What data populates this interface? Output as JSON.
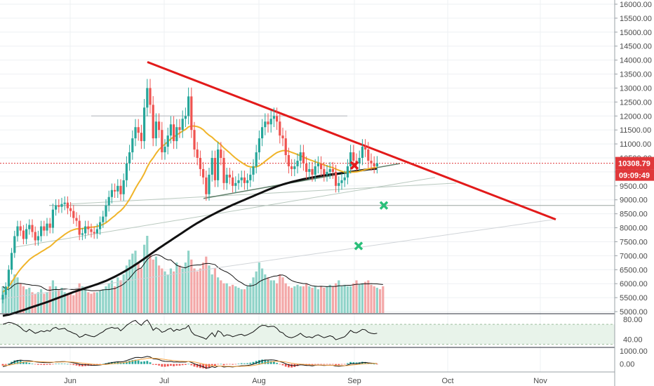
{
  "chart_data": {
    "type": "candlestick",
    "price_axis": {
      "ticks": [
        "16000.00",
        "15500.00",
        "15000.00",
        "14500.00",
        "14000.00",
        "13500.00",
        "13000.00",
        "12500.00",
        "12000.00",
        "11500.00",
        "11000.00",
        "10500.00",
        "10000.00",
        "9500.00",
        "9000.00",
        "8500.00",
        "8000.00",
        "7500.00",
        "7000.00",
        "6500.00",
        "6000.00",
        "5500.00",
        "5000.00"
      ],
      "tick_values": [
        16000,
        15500,
        15000,
        14500,
        14000,
        13500,
        13000,
        12500,
        12000,
        11500,
        11000,
        10500,
        10000,
        9500,
        9000,
        8500,
        8000,
        7500,
        7000,
        6500,
        6000,
        5500,
        5000
      ],
      "last_price": "10308.79",
      "last_price_value": 10308.79,
      "countdown": "09:09:49",
      "ylim": [
        4950,
        16150
      ]
    },
    "time_axis": {
      "labels": [
        "Jun",
        "Jul",
        "Aug",
        "Sep",
        "Oct",
        "Nov"
      ]
    },
    "closes": [
      5600,
      5900,
      6500,
      7100,
      7700,
      8050,
      7900,
      7600,
      7950,
      8100,
      7850,
      7550,
      7700,
      8050,
      7900,
      8150,
      8000,
      8650,
      8800,
      8750,
      8850,
      8900,
      8700,
      8600,
      8350,
      8250,
      7750,
      7800,
      8050,
      7950,
      7850,
      7800,
      7950,
      8200,
      8400,
      8800,
      9100,
      9350,
      9300,
      9500,
      9200,
      9700,
      10300,
      10700,
      11200,
      11600,
      11400,
      11100,
      12300,
      13000,
      12400,
      11200,
      11800,
      11500,
      10700,
      10900,
      11300,
      11700,
      11100,
      11600,
      11500,
      11900,
      12000,
      12700,
      11500,
      10800,
      10500,
      10100,
      9800,
      9200,
      9900,
      10500,
      9700,
      10800,
      10500,
      9600,
      9900,
      9800,
      9500,
      9600,
      9700,
      9800,
      9600,
      9700,
      9900,
      10200,
      10700,
      11200,
      11600,
      11800,
      11700,
      11900,
      12000,
      11800,
      11300,
      11200,
      10600,
      10200,
      10100,
      10200,
      10400,
      10700,
      10300,
      10000,
      10100,
      9900,
      10200,
      10300,
      10100,
      9900,
      10000,
      10100,
      10000,
      9500,
      9600,
      9700,
      9800,
      10200,
      10700,
      10400,
      10300,
      10500,
      10900,
      10800,
      10400,
      10300,
      10200,
      10308
    ],
    "volume": [
      900,
      700,
      800,
      1100,
      1300,
      1200,
      1000,
      900,
      800,
      850,
      700,
      650,
      700,
      800,
      650,
      700,
      900,
      1100,
      900,
      800,
      850,
      700,
      650,
      700,
      600,
      800,
      1000,
      900,
      800,
      700,
      650,
      700,
      700,
      750,
      800,
      900,
      1000,
      1100,
      900,
      1200,
      1100,
      1300,
      1600,
      1800,
      2000,
      2100,
      1700,
      1500,
      2300,
      2600,
      2000,
      1800,
      1900,
      1600,
      1500,
      1400,
      1300,
      1500,
      1400,
      1700,
      1600,
      1500,
      1700,
      2100,
      1800,
      1500,
      1400,
      1500,
      1700,
      1900,
      1600,
      1300,
      1500,
      1200,
      1100,
      1000,
      1000,
      900,
      950,
      900,
      850,
      800,
      800,
      900,
      1000,
      1200,
      1400,
      1700,
      1500,
      1300,
      1200,
      1100,
      1100,
      1000,
      1300,
      1200,
      1000,
      900,
      850,
      900,
      950,
      900,
      900,
      1000,
      900,
      850,
      900,
      800,
      900,
      850,
      900,
      950,
      900,
      1000,
      1100,
      900,
      950,
      900,
      900,
      1000,
      1100,
      950,
      1000,
      1050,
      1100,
      950,
      900,
      850,
      800,
      900
    ],
    "sma_short": [
      5700,
      5780,
      5900,
      6050,
      6220,
      6380,
      6520,
      6640,
      6750,
      6860,
      6940,
      7010,
      7070,
      7140,
      7200,
      7270,
      7330,
      7420,
      7520,
      7600,
      7680,
      7760,
      7830,
      7890,
      7930,
      7960,
      7960,
      7970,
      7990,
      8010,
      8020,
      8030,
      8050,
      8080,
      8120,
      8180,
      8260,
      8350,
      8430,
      8530,
      8610,
      8720,
      8860,
      9020,
      9210,
      9410,
      9590,
      9750,
      9940,
      10170,
      10360,
      10500,
      10660,
      10800,
      10900,
      10990,
      11080,
      11180,
      11250,
      11320,
      11390,
      11460,
      11520,
      11610,
      11640,
      11640,
      11620,
      11580,
      11510,
      11400,
      11310,
      11240,
      11140,
      11060,
      10970,
      10860,
      10770,
      10680,
      10580,
      10490,
      10410,
      10340,
      10270,
      10210,
      10180,
      10170,
      10180,
      10220,
      10290,
      10380,
      10460,
      10540,
      10620,
      10690,
      10730,
      10760,
      10760,
      10740,
      10700,
      10660,
      10620,
      10580,
      10530,
      10480,
      10440,
      10400,
      10360,
      10330,
      10290,
      10250,
      10210,
      10180,
      10150,
      10100,
      10060,
      10020,
      9990,
      9980,
      9990,
      9990,
      10000,
      10020,
      10050,
      10080,
      10110,
      10130,
      10150,
      10160
    ],
    "sma_long": [
      4850,
      4870,
      4890,
      4920,
      4950,
      4985,
      5020,
      5055,
      5090,
      5130,
      5165,
      5200,
      5235,
      5270,
      5305,
      5340,
      5380,
      5420,
      5460,
      5500,
      5540,
      5580,
      5620,
      5660,
      5700,
      5735,
      5770,
      5805,
      5840,
      5875,
      5910,
      5945,
      5980,
      6020,
      6060,
      6100,
      6150,
      6200,
      6250,
      6305,
      6360,
      6420,
      6480,
      6545,
      6610,
      6680,
      6750,
      6820,
      6895,
      6970,
      7045,
      7120,
      7195,
      7270,
      7340,
      7410,
      7480,
      7550,
      7620,
      7690,
      7760,
      7830,
      7900,
      7970,
      8040,
      8105,
      8170,
      8230,
      8290,
      8350,
      8405,
      8460,
      8515,
      8570,
      8620,
      8670,
      8720,
      8770,
      8820,
      8865,
      8910,
      8955,
      9000,
      9045,
      9090,
      9135,
      9180,
      9225,
      9270,
      9315,
      9360,
      9400,
      9440,
      9480,
      9515,
      9550,
      9580,
      9610,
      9640,
      9665,
      9690,
      9715,
      9740,
      9760,
      9780,
      9800,
      9820,
      9840,
      9860,
      9875,
      9890,
      9905,
      9920,
      9930,
      9940,
      9955,
      9970,
      9985,
      10000,
      10015,
      10030,
      10045,
      10060,
      10075,
      10090,
      10100,
      10110,
      10120
    ],
    "rsi": {
      "values": [
        70,
        72,
        74,
        73,
        71,
        68,
        64,
        58,
        55,
        60,
        56,
        52,
        54,
        57,
        55,
        58,
        56,
        62,
        64,
        60,
        61,
        62,
        57,
        55,
        52,
        50,
        44,
        46,
        50,
        48,
        46,
        45,
        48,
        52,
        55,
        60,
        62,
        64,
        62,
        63,
        57,
        62,
        68,
        72,
        76,
        78,
        72,
        68,
        75,
        79,
        70,
        58,
        63,
        60,
        54,
        56,
        60,
        62,
        56,
        60,
        58,
        61,
        62,
        68,
        55,
        49,
        47,
        45,
        43,
        40,
        47,
        53,
        45,
        57,
        54,
        46,
        49,
        48,
        45,
        47,
        49,
        50,
        47,
        49,
        52,
        55,
        60,
        65,
        68,
        68,
        65,
        66,
        66,
        62,
        55,
        53,
        47,
        44,
        43,
        45,
        48,
        52,
        47,
        44,
        45,
        43,
        47,
        49,
        46,
        43,
        45,
        47,
        45,
        39,
        41,
        43,
        45,
        51,
        58,
        54,
        53,
        56,
        60,
        59,
        54,
        52,
        51,
        52
      ],
      "ticks": [
        "80.00",
        "40.00"
      ],
      "tick_values": [
        80,
        40
      ],
      "ylim": [
        25,
        90
      ],
      "band": [
        30,
        70
      ]
    },
    "macd": {
      "values": [
        -200,
        -150,
        -60,
        60,
        180,
        260,
        290,
        270,
        260,
        250,
        220,
        170,
        140,
        130,
        110,
        110,
        100,
        130,
        160,
        170,
        180,
        180,
        160,
        130,
        90,
        50,
        -10,
        -50,
        -60,
        -70,
        -90,
        -100,
        -90,
        -70,
        -40,
        10,
        60,
        110,
        140,
        170,
        160,
        190,
        260,
        340,
        420,
        490,
        500,
        470,
        520,
        580,
        530,
        400,
        380,
        330,
        240,
        200,
        190,
        200,
        150,
        160,
        140,
        150,
        150,
        200,
        120,
        20,
        -60,
        -140,
        -210,
        -300,
        -280,
        -200,
        -260,
        -160,
        -150,
        -230,
        -200,
        -200,
        -220,
        -190,
        -160,
        -130,
        -130,
        -110,
        -70,
        -10,
        80,
        170,
        250,
        300,
        300,
        310,
        300,
        260,
        180,
        120,
        20,
        -60,
        -110,
        -120,
        -100,
        -60,
        -80,
        -110,
        -110,
        -140,
        -100,
        -80,
        -90,
        -110,
        -100,
        -90,
        -100,
        -160,
        -170,
        -150,
        -130,
        -70,
        10,
        20,
        30,
        60,
        110,
        120,
        90,
        70,
        50,
        40
      ],
      "signal": [
        -120,
        -110,
        -90,
        -50,
        0,
        60,
        110,
        150,
        175,
        190,
        195,
        190,
        180,
        170,
        160,
        150,
        140,
        138,
        142,
        148,
        155,
        160,
        160,
        155,
        142,
        124,
        97,
        67,
        42,
        20,
        -2,
        -22,
        -36,
        -43,
        -42,
        -32,
        -14,
        11,
        37,
        63,
        82,
        104,
        135,
        176,
        225,
        278,
        322,
        352,
        386,
        425,
        446,
        437,
        425,
        406,
        373,
        338,
        309,
        287,
        260,
        240,
        220,
        206,
        195,
        196,
        181,
        149,
        107,
        58,
        4,
        -57,
        -102,
        -122,
        -150,
        -152,
        -152,
        -167,
        -174,
        -179,
        -187,
        -188,
        -182,
        -172,
        -164,
        -153,
        -137,
        -112,
        -73,
        -25,
        30,
        84,
        127,
        164,
        191,
        205,
        200,
        184,
        151,
        109,
        65,
        28,
        2,
        -10,
        -24,
        -41,
        -55,
        -72,
        -78,
        -78,
        -80,
        -86,
        -89,
        -89,
        -91,
        -105,
        -118,
        -124,
        -125,
        -114,
        -89,
        -67,
        -47,
        -26,
        1,
        25,
        38,
        44,
        45,
        44
      ],
      "ticks": [
        "1000.00",
        "0.00"
      ],
      "tick_values": [
        1000,
        0
      ],
      "ylim": [
        -600,
        1200
      ]
    }
  }
}
